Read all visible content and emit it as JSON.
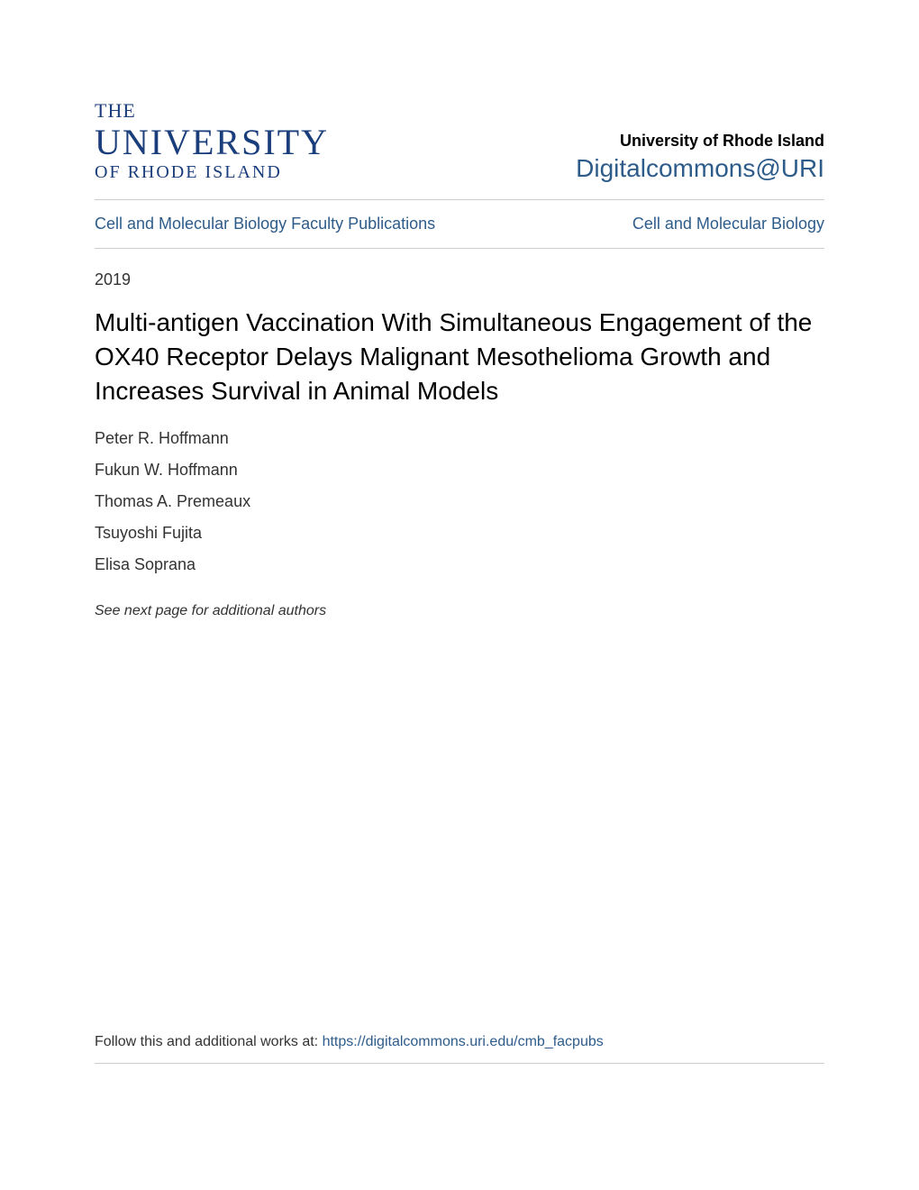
{
  "logo": {
    "line1": "THE",
    "line2": "UNIVERSITY",
    "line3": "OF RHODE ISLAND"
  },
  "header": {
    "institution": "University of Rhode Island",
    "repository": "Digitalcommons@URI"
  },
  "nav": {
    "left": "Cell and Molecular Biology Faculty Publications",
    "right": "Cell and Molecular Biology"
  },
  "year": "2019",
  "title": "Multi-antigen Vaccination With Simultaneous Engagement of the OX40 Receptor Delays Malignant Mesothelioma Growth and Increases Survival in Animal Models",
  "authors": [
    "Peter R. Hoffmann",
    "Fukun W. Hoffmann",
    "Thomas A. Premeaux",
    "Tsuyoshi Fujita",
    "Elisa Soprana"
  ],
  "see_next": "See next page for additional authors",
  "footer": {
    "prefix": "Follow this and additional works at: ",
    "url": "https://digitalcommons.uri.edu/cmb_facpubs"
  },
  "colors": {
    "logo_color": "#1a3d7c",
    "link_color": "#2e5c8a",
    "text_color": "#333333",
    "title_color": "#000000",
    "divider_color": "#cccccc",
    "background": "#ffffff"
  },
  "typography": {
    "logo_font": "Georgia, serif",
    "body_font": "-apple-system, BlinkMacSystemFont, 'Segoe UI', Arial, sans-serif",
    "title_fontsize": 28,
    "author_fontsize": 18,
    "nav_fontsize": 18
  }
}
